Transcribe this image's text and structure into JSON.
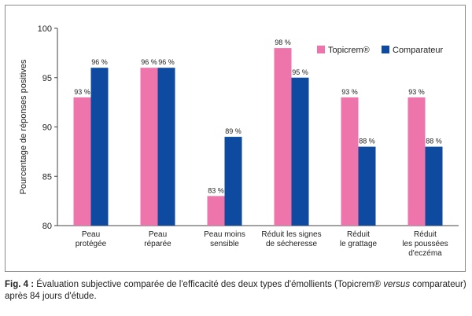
{
  "chart_data": {
    "type": "bar",
    "categories": [
      [
        "Peau",
        "protégée"
      ],
      [
        "Peau",
        "réparée"
      ],
      [
        "Peau moins",
        "sensible"
      ],
      [
        "Réduit les signes",
        "de sécheresse"
      ],
      [
        "Réduit",
        "le grattage"
      ],
      [
        "Réduit",
        "les poussées",
        "d'eczéma"
      ]
    ],
    "series": [
      {
        "name": "Topicrem®",
        "color": "#ee74ac",
        "values": [
          93,
          96,
          83,
          98,
          93,
          93
        ],
        "labels": [
          "93 %",
          "96 %",
          "83 %",
          "98 %",
          "93 %",
          "93 %"
        ]
      },
      {
        "name": "Comparateur",
        "color": "#0d4aa0",
        "values": [
          96,
          96,
          89,
          95,
          88,
          88
        ],
        "labels": [
          "96 %",
          "96 %",
          "89 %",
          "95 %",
          "88 %",
          "88 %"
        ]
      }
    ],
    "ylabel": "Pourcentage de réponses positives",
    "xlabel": "",
    "ylim": [
      80,
      100
    ],
    "yticks": [
      80,
      85,
      90,
      95,
      100
    ],
    "grid": false,
    "legend": "top-right"
  },
  "caption": {
    "label": "Fig. 4 :",
    "text_before": " Évaluation subjective comparée de l'efficacité des deux types d'émollients (Topicrem® ",
    "italic": "versus",
    "text_after": " comparateur) après 84 jours d'étude."
  }
}
